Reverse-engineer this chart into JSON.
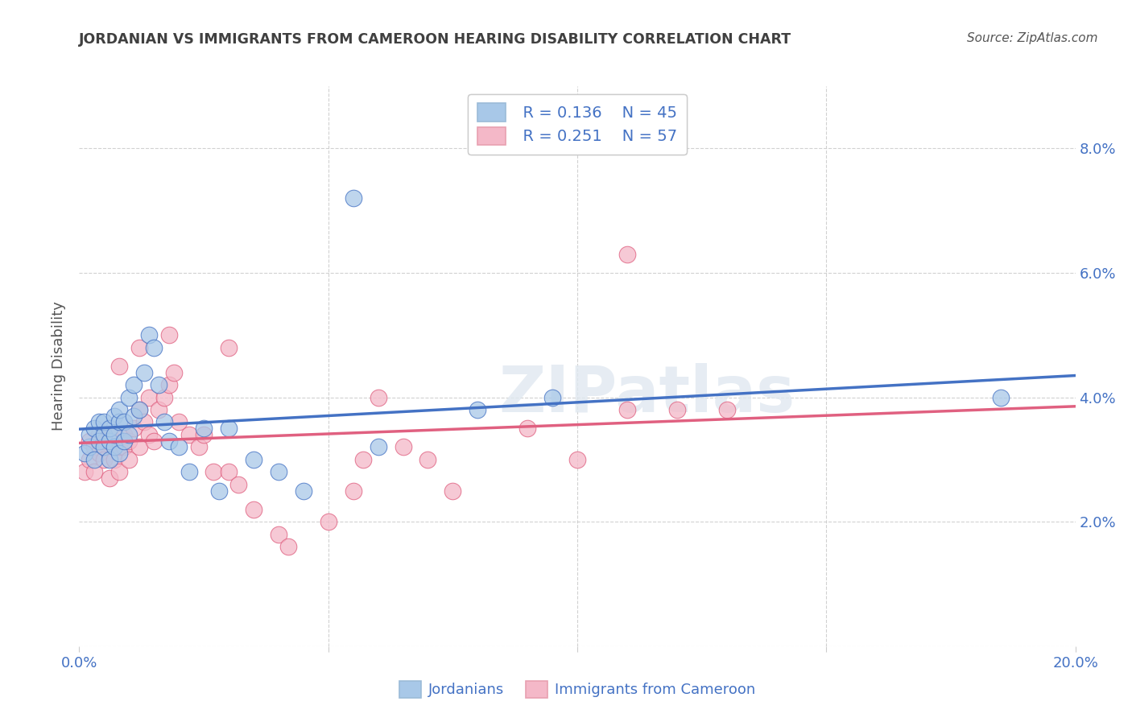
{
  "title": "JORDANIAN VS IMMIGRANTS FROM CAMEROON HEARING DISABILITY CORRELATION CHART",
  "source": "Source: ZipAtlas.com",
  "ylabel": "Hearing Disability",
  "xlim": [
    0.0,
    0.2
  ],
  "ylim": [
    0.0,
    0.09
  ],
  "legend_R1": "0.136",
  "legend_N1": "45",
  "legend_R2": "0.251",
  "legend_N2": "57",
  "color_jordan": "#a8c8e8",
  "color_cameroon": "#f4b8c8",
  "color_jordan_line": "#4472c4",
  "color_cameroon_line": "#e06080",
  "color_text_blue": "#4472c4",
  "color_title": "#404040",
  "watermark": "ZIPatlas",
  "jordanians_x": [
    0.001,
    0.002,
    0.002,
    0.003,
    0.003,
    0.004,
    0.004,
    0.005,
    0.005,
    0.005,
    0.006,
    0.006,
    0.006,
    0.007,
    0.007,
    0.007,
    0.008,
    0.008,
    0.008,
    0.009,
    0.009,
    0.01,
    0.01,
    0.011,
    0.011,
    0.012,
    0.013,
    0.014,
    0.015,
    0.016,
    0.017,
    0.018,
    0.02,
    0.022,
    0.025,
    0.028,
    0.03,
    0.035,
    0.04,
    0.045,
    0.055,
    0.06,
    0.08,
    0.095,
    0.185
  ],
  "jordanians_y": [
    0.031,
    0.032,
    0.034,
    0.03,
    0.035,
    0.033,
    0.036,
    0.032,
    0.034,
    0.036,
    0.03,
    0.033,
    0.035,
    0.032,
    0.034,
    0.037,
    0.031,
    0.036,
    0.038,
    0.033,
    0.036,
    0.034,
    0.04,
    0.037,
    0.042,
    0.038,
    0.044,
    0.05,
    0.048,
    0.042,
    0.036,
    0.033,
    0.032,
    0.028,
    0.035,
    0.025,
    0.035,
    0.03,
    0.028,
    0.025,
    0.072,
    0.032,
    0.038,
    0.04,
    0.04
  ],
  "cameroon_x": [
    0.001,
    0.002,
    0.002,
    0.003,
    0.003,
    0.004,
    0.004,
    0.005,
    0.005,
    0.006,
    0.006,
    0.007,
    0.007,
    0.008,
    0.008,
    0.009,
    0.009,
    0.01,
    0.01,
    0.011,
    0.012,
    0.012,
    0.013,
    0.014,
    0.014,
    0.015,
    0.016,
    0.017,
    0.018,
    0.019,
    0.02,
    0.022,
    0.024,
    0.025,
    0.027,
    0.03,
    0.032,
    0.035,
    0.04,
    0.042,
    0.05,
    0.055,
    0.06,
    0.07,
    0.075,
    0.09,
    0.1,
    0.11,
    0.12,
    0.13,
    0.11,
    0.008,
    0.012,
    0.018,
    0.03,
    0.057,
    0.065
  ],
  "cameroon_y": [
    0.028,
    0.03,
    0.033,
    0.028,
    0.032,
    0.031,
    0.034,
    0.03,
    0.033,
    0.027,
    0.034,
    0.03,
    0.032,
    0.028,
    0.032,
    0.032,
    0.034,
    0.033,
    0.03,
    0.035,
    0.032,
    0.038,
    0.036,
    0.034,
    0.04,
    0.033,
    0.038,
    0.04,
    0.042,
    0.044,
    0.036,
    0.034,
    0.032,
    0.034,
    0.028,
    0.028,
    0.026,
    0.022,
    0.018,
    0.016,
    0.02,
    0.025,
    0.04,
    0.03,
    0.025,
    0.035,
    0.03,
    0.038,
    0.038,
    0.038,
    0.063,
    0.045,
    0.048,
    0.05,
    0.048,
    0.03,
    0.032
  ]
}
